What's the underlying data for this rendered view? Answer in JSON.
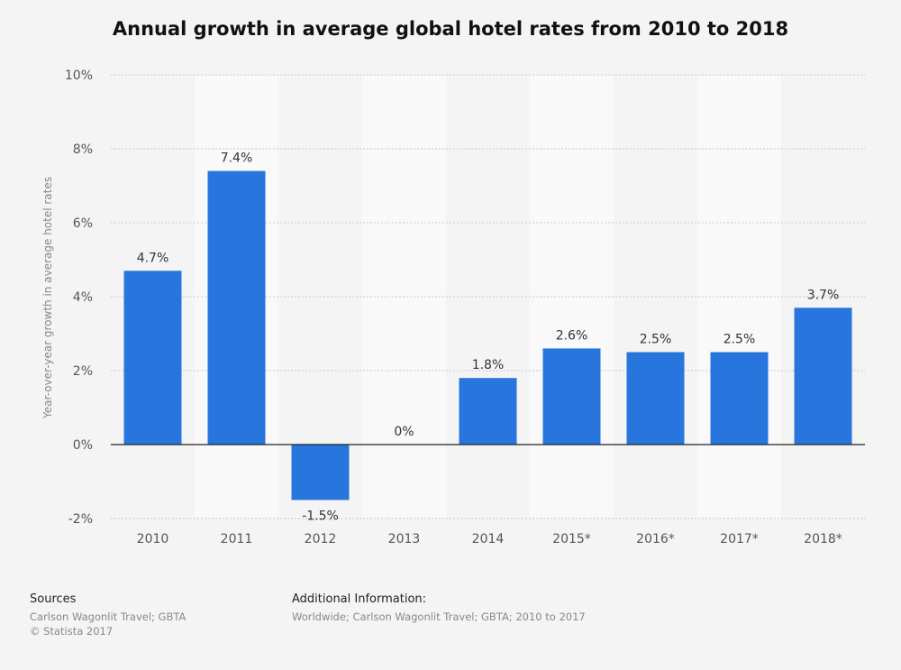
{
  "chart_data": {
    "type": "bar",
    "title": "Annual growth in average global hotel rates from 2010 to 2018",
    "ylabel": "Year-over-year growth in average hotel rates",
    "xlabel": "",
    "categories": [
      "2010",
      "2011",
      "2012",
      "2013",
      "2014",
      "2015*",
      "2016*",
      "2017*",
      "2018*"
    ],
    "values": [
      4.7,
      7.4,
      -1.5,
      0,
      1.8,
      2.6,
      2.5,
      2.5,
      3.7
    ],
    "value_labels": [
      "4.7%",
      "7.4%",
      "-1.5%",
      "0%",
      "1.8%",
      "2.6%",
      "2.5%",
      "2.5%",
      "3.7%"
    ],
    "yticks": [
      -2,
      0,
      2,
      4,
      6,
      8,
      10
    ],
    "ytick_labels": [
      "-2%",
      "0%",
      "2%",
      "4%",
      "6%",
      "8%",
      "10%"
    ],
    "ylim": [
      -2,
      10
    ],
    "grid": true,
    "bar_color": "#2876dd"
  },
  "footer": {
    "sources_heading": "Sources",
    "sources_lines": [
      "Carlson Wagonlit Travel; GBTA",
      "© Statista 2017"
    ],
    "additional_heading": "Additional Information:",
    "additional_lines": [
      "Worldwide; Carlson Wagonlit Travel; GBTA; 2010 to 2017"
    ]
  }
}
